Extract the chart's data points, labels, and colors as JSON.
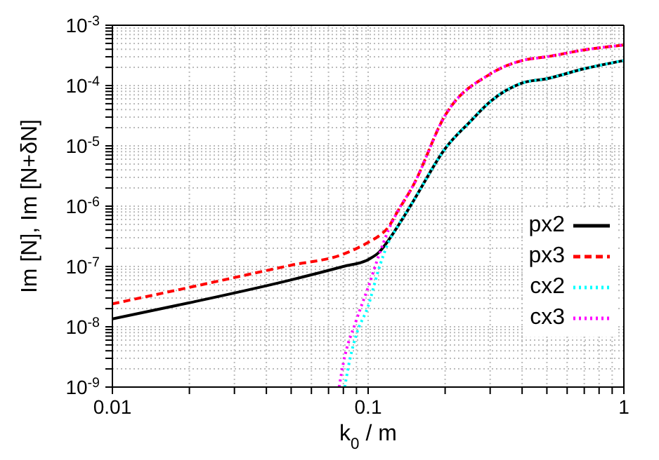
{
  "chart_data": {
    "type": "line",
    "xlabel": "k$_{0}$ / m",
    "ylabel": "Im [N], Im [N+δN]",
    "log": "xy",
    "grid": true,
    "legend": "right",
    "marker": "none",
    "xlim": [
      0.01,
      1
    ],
    "ylim": [
      1e-09,
      0.001
    ],
    "xticks": [
      0.01,
      {
        "value": 0.02,
        "label": null
      },
      {
        "value": 0.03,
        "label": null
      },
      {
        "value": 0.04,
        "label": null
      },
      {
        "value": 0.05,
        "label": null
      },
      {
        "value": 0.06,
        "label": null
      },
      {
        "value": 0.07,
        "label": null
      },
      {
        "value": 0.08,
        "label": null
      },
      {
        "value": 0.09,
        "label": null
      },
      0.1,
      {
        "value": 0.2,
        "label": null
      },
      {
        "value": 0.3,
        "label": null
      },
      {
        "value": 0.4,
        "label": null
      },
      {
        "value": 0.5,
        "label": null
      },
      {
        "value": 0.6,
        "label": null
      },
      {
        "value": 0.7,
        "label": null
      },
      {
        "value": 0.8,
        "label": null
      },
      {
        "value": 0.9,
        "label": null
      },
      1
    ],
    "yticks": [
      {
        "value": 1e-09,
        "label": "10$^{-9}$"
      },
      {
        "value": 2e-09,
        "label": null
      },
      {
        "value": 3e-09,
        "label": null
      },
      {
        "value": 4e-09,
        "label": null
      },
      {
        "value": 5e-09,
        "label": null
      },
      {
        "value": 6e-09,
        "label": null
      },
      {
        "value": 7e-09,
        "label": null
      },
      {
        "value": 8e-09,
        "label": null
      },
      {
        "value": 9e-09,
        "label": null
      },
      {
        "value": 1e-08,
        "label": "10$^{-8}$"
      },
      {
        "value": 2e-08,
        "label": null
      },
      {
        "value": 3e-08,
        "label": null
      },
      {
        "value": 4e-08,
        "label": null
      },
      {
        "value": 5e-08,
        "label": null
      },
      {
        "value": 6e-08,
        "label": null
      },
      {
        "value": 7e-08,
        "label": null
      },
      {
        "value": 8e-08,
        "label": null
      },
      {
        "value": 9e-08,
        "label": null
      },
      {
        "value": 1e-07,
        "label": "10$^{-7}$"
      },
      {
        "value": 2e-07,
        "label": null
      },
      {
        "value": 3e-07,
        "label": null
      },
      {
        "value": 4e-07,
        "label": null
      },
      {
        "value": 5e-07,
        "label": null
      },
      {
        "value": 6e-07,
        "label": null
      },
      {
        "value": 7e-07,
        "label": null
      },
      {
        "value": 8e-07,
        "label": null
      },
      {
        "value": 9e-07,
        "label": null
      },
      {
        "value": 1e-06,
        "label": "10$^{-6}$"
      },
      {
        "value": 2e-06,
        "label": null
      },
      {
        "value": 3e-06,
        "label": null
      },
      {
        "value": 4e-06,
        "label": null
      },
      {
        "value": 5e-06,
        "label": null
      },
      {
        "value": 6e-06,
        "label": null
      },
      {
        "value": 7e-06,
        "label": null
      },
      {
        "value": 8e-06,
        "label": null
      },
      {
        "value": 9e-06,
        "label": null
      },
      {
        "value": 1e-05,
        "label": "10$^{-5}$"
      },
      {
        "value": 2e-05,
        "label": null
      },
      {
        "value": 3e-05,
        "label": null
      },
      {
        "value": 4e-05,
        "label": null
      },
      {
        "value": 5e-05,
        "label": null
      },
      {
        "value": 6e-05,
        "label": null
      },
      {
        "value": 7e-05,
        "label": null
      },
      {
        "value": 8e-05,
        "label": null
      },
      {
        "value": 9e-05,
        "label": null
      },
      {
        "value": 0.0001,
        "label": "10$^{-4}$"
      },
      {
        "value": 0.0002,
        "label": null
      },
      {
        "value": 0.0003,
        "label": null
      },
      {
        "value": 0.0004,
        "label": null
      },
      {
        "value": 0.0005,
        "label": null
      },
      {
        "value": 0.0006,
        "label": null
      },
      {
        "value": 0.0007,
        "label": null
      },
      {
        "value": 0.0008,
        "label": null
      },
      {
        "value": 0.0009,
        "label": null
      },
      {
        "value": 0.001,
        "label": "10$^{-3}$"
      }
    ],
    "series": [
      {
        "name": "px2",
        "color": "#000000",
        "line_style": "solid",
        "x": [
          0.01,
          0.02,
          0.05,
          0.08,
          0.1,
          0.11,
          0.12,
          0.13,
          0.15,
          0.2,
          0.25,
          0.3,
          0.4,
          0.5,
          0.7,
          1
        ],
        "values": [
          1.35e-08,
          2.5e-08,
          6e-08,
          1e-07,
          1.3e-07,
          1.7e-07,
          2.7e-07,
          4.5e-07,
          1.2e-06,
          9e-06,
          2.5e-05,
          5.4e-05,
          0.00011,
          0.00013,
          0.00019,
          0.00026
        ]
      },
      {
        "name": "px3",
        "color": "#ff0000",
        "line_style": "dashed",
        "x": [
          0.01,
          0.02,
          0.05,
          0.08,
          0.1,
          0.11,
          0.12,
          0.13,
          0.15,
          0.2,
          0.3,
          0.4,
          0.5,
          0.7,
          1
        ],
        "values": [
          2.4e-08,
          4.5e-08,
          1.05e-07,
          1.6e-07,
          2.5e-07,
          3.2e-07,
          4.5e-07,
          8e-07,
          2.2e-06,
          3.2e-05,
          0.000155,
          0.00026,
          0.0003,
          0.00039,
          0.00047
        ]
      },
      {
        "name": "cx2",
        "color": "#00ffff",
        "line_style": "dotted",
        "x": [
          0.081,
          0.085,
          0.09,
          0.1,
          0.11,
          0.12,
          0.13,
          0.15,
          0.2,
          0.25,
          0.3,
          0.4,
          0.5,
          0.7,
          1
        ],
        "values": [
          1e-09,
          3e-09,
          7.5e-09,
          2.2e-08,
          9e-08,
          2.5e-07,
          4.5e-07,
          1.2e-06,
          9e-06,
          2.5e-05,
          5.4e-05,
          0.00011,
          0.00013,
          0.00019,
          0.00026
        ]
      },
      {
        "name": "cx3",
        "color": "#ff00ff",
        "line_style": "dotted",
        "x": [
          0.077,
          0.08,
          0.09,
          0.1,
          0.11,
          0.12,
          0.13,
          0.15,
          0.2,
          0.3,
          0.4,
          0.5,
          0.7,
          1
        ],
        "values": [
          1e-09,
          2.5e-09,
          1.3e-08,
          4.5e-08,
          1.5e-07,
          4e-07,
          8e-07,
          2.2e-06,
          3.2e-05,
          0.000155,
          0.00026,
          0.0003,
          0.00039,
          0.00047
        ]
      }
    ]
  }
}
